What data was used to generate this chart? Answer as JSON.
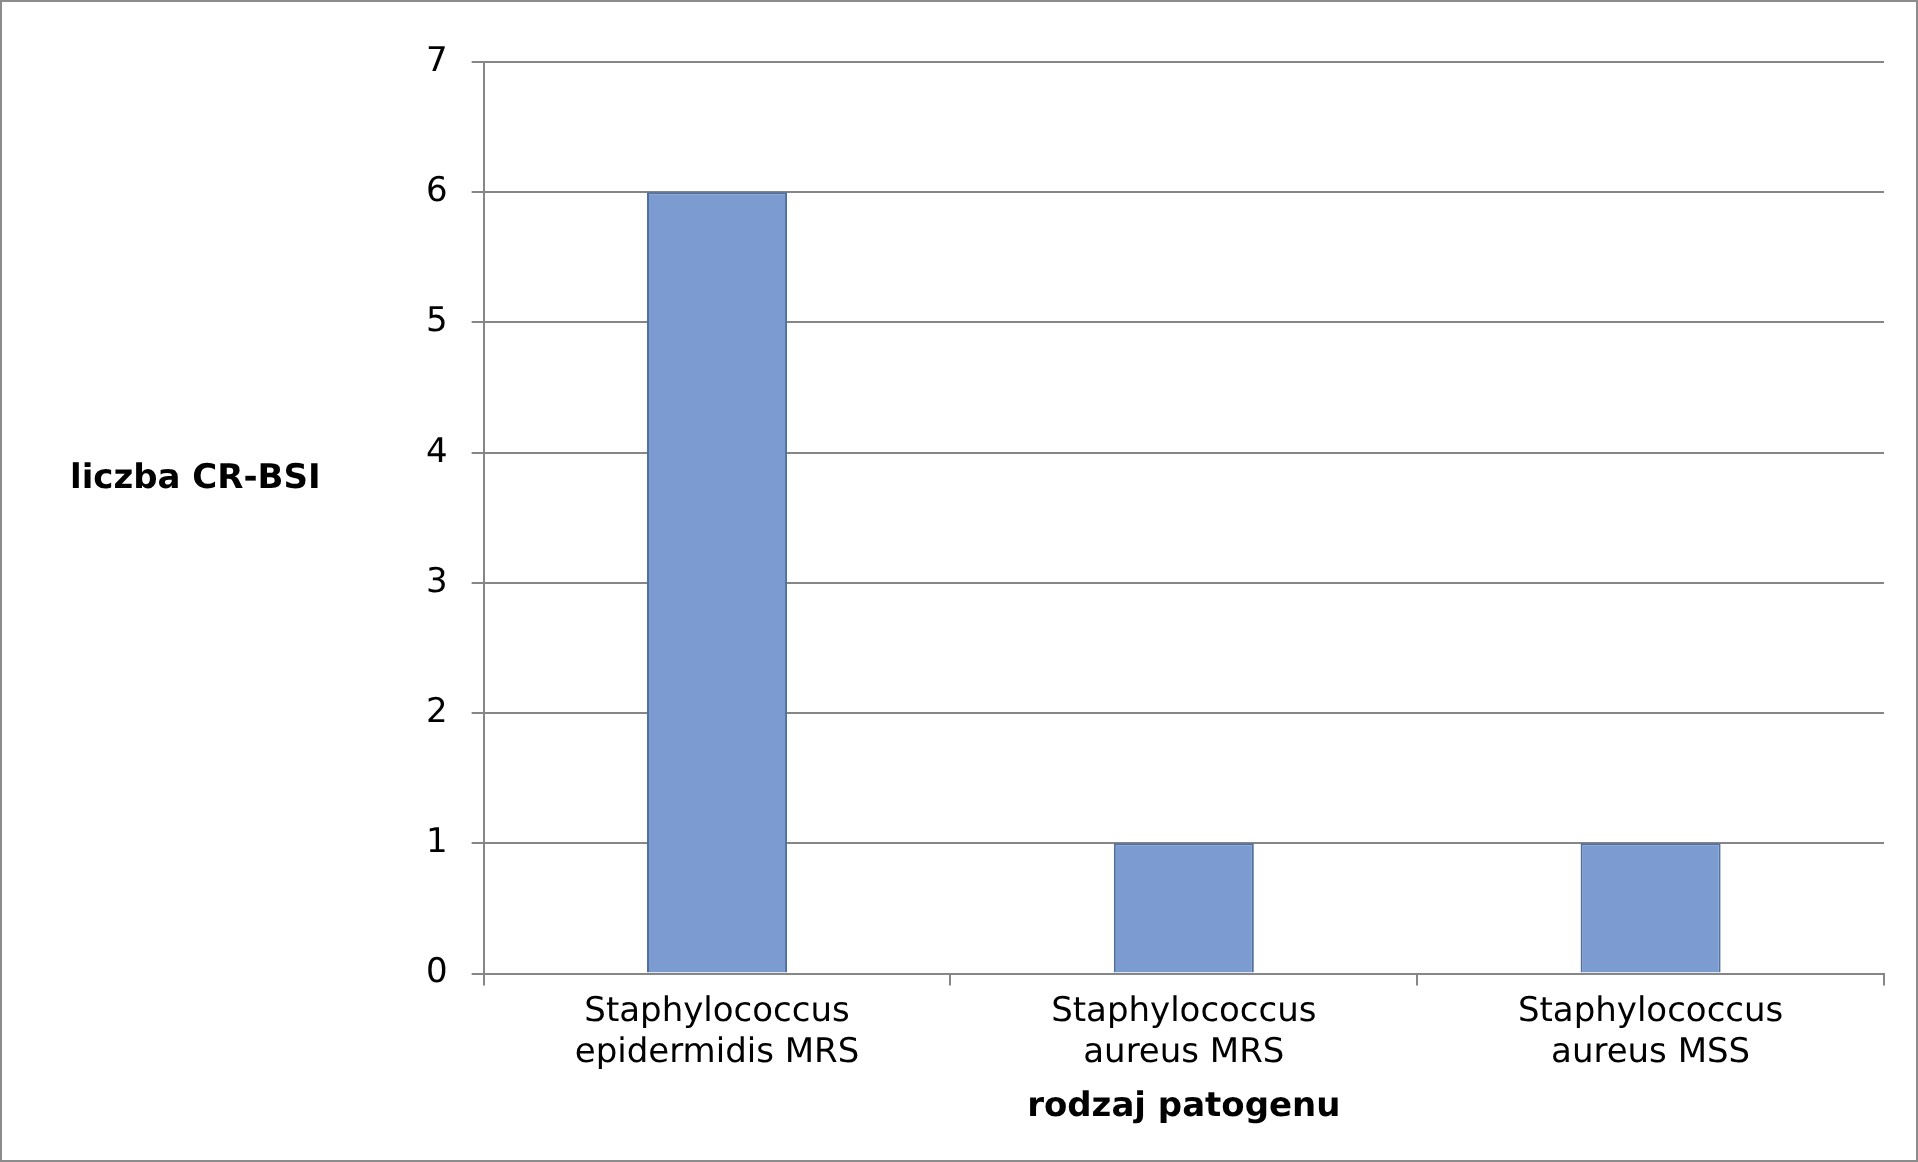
{
  "chart_data": {
    "type": "bar",
    "xlabel": "rodzaj patogenu",
    "ylabel": "liczba CR-BSI",
    "categories": [
      "Staphylococcus epidermidis MRS",
      "Staphylococcus aureus MRS",
      "Staphylococcus aureus MSS"
    ],
    "values": [
      6,
      1,
      1
    ],
    "color": "#7b9bd1",
    "ylim": [
      0,
      7
    ],
    "yticks": [
      0,
      1,
      2,
      3,
      4,
      5,
      6,
      7
    ],
    "grid": "y",
    "legend": false
  }
}
